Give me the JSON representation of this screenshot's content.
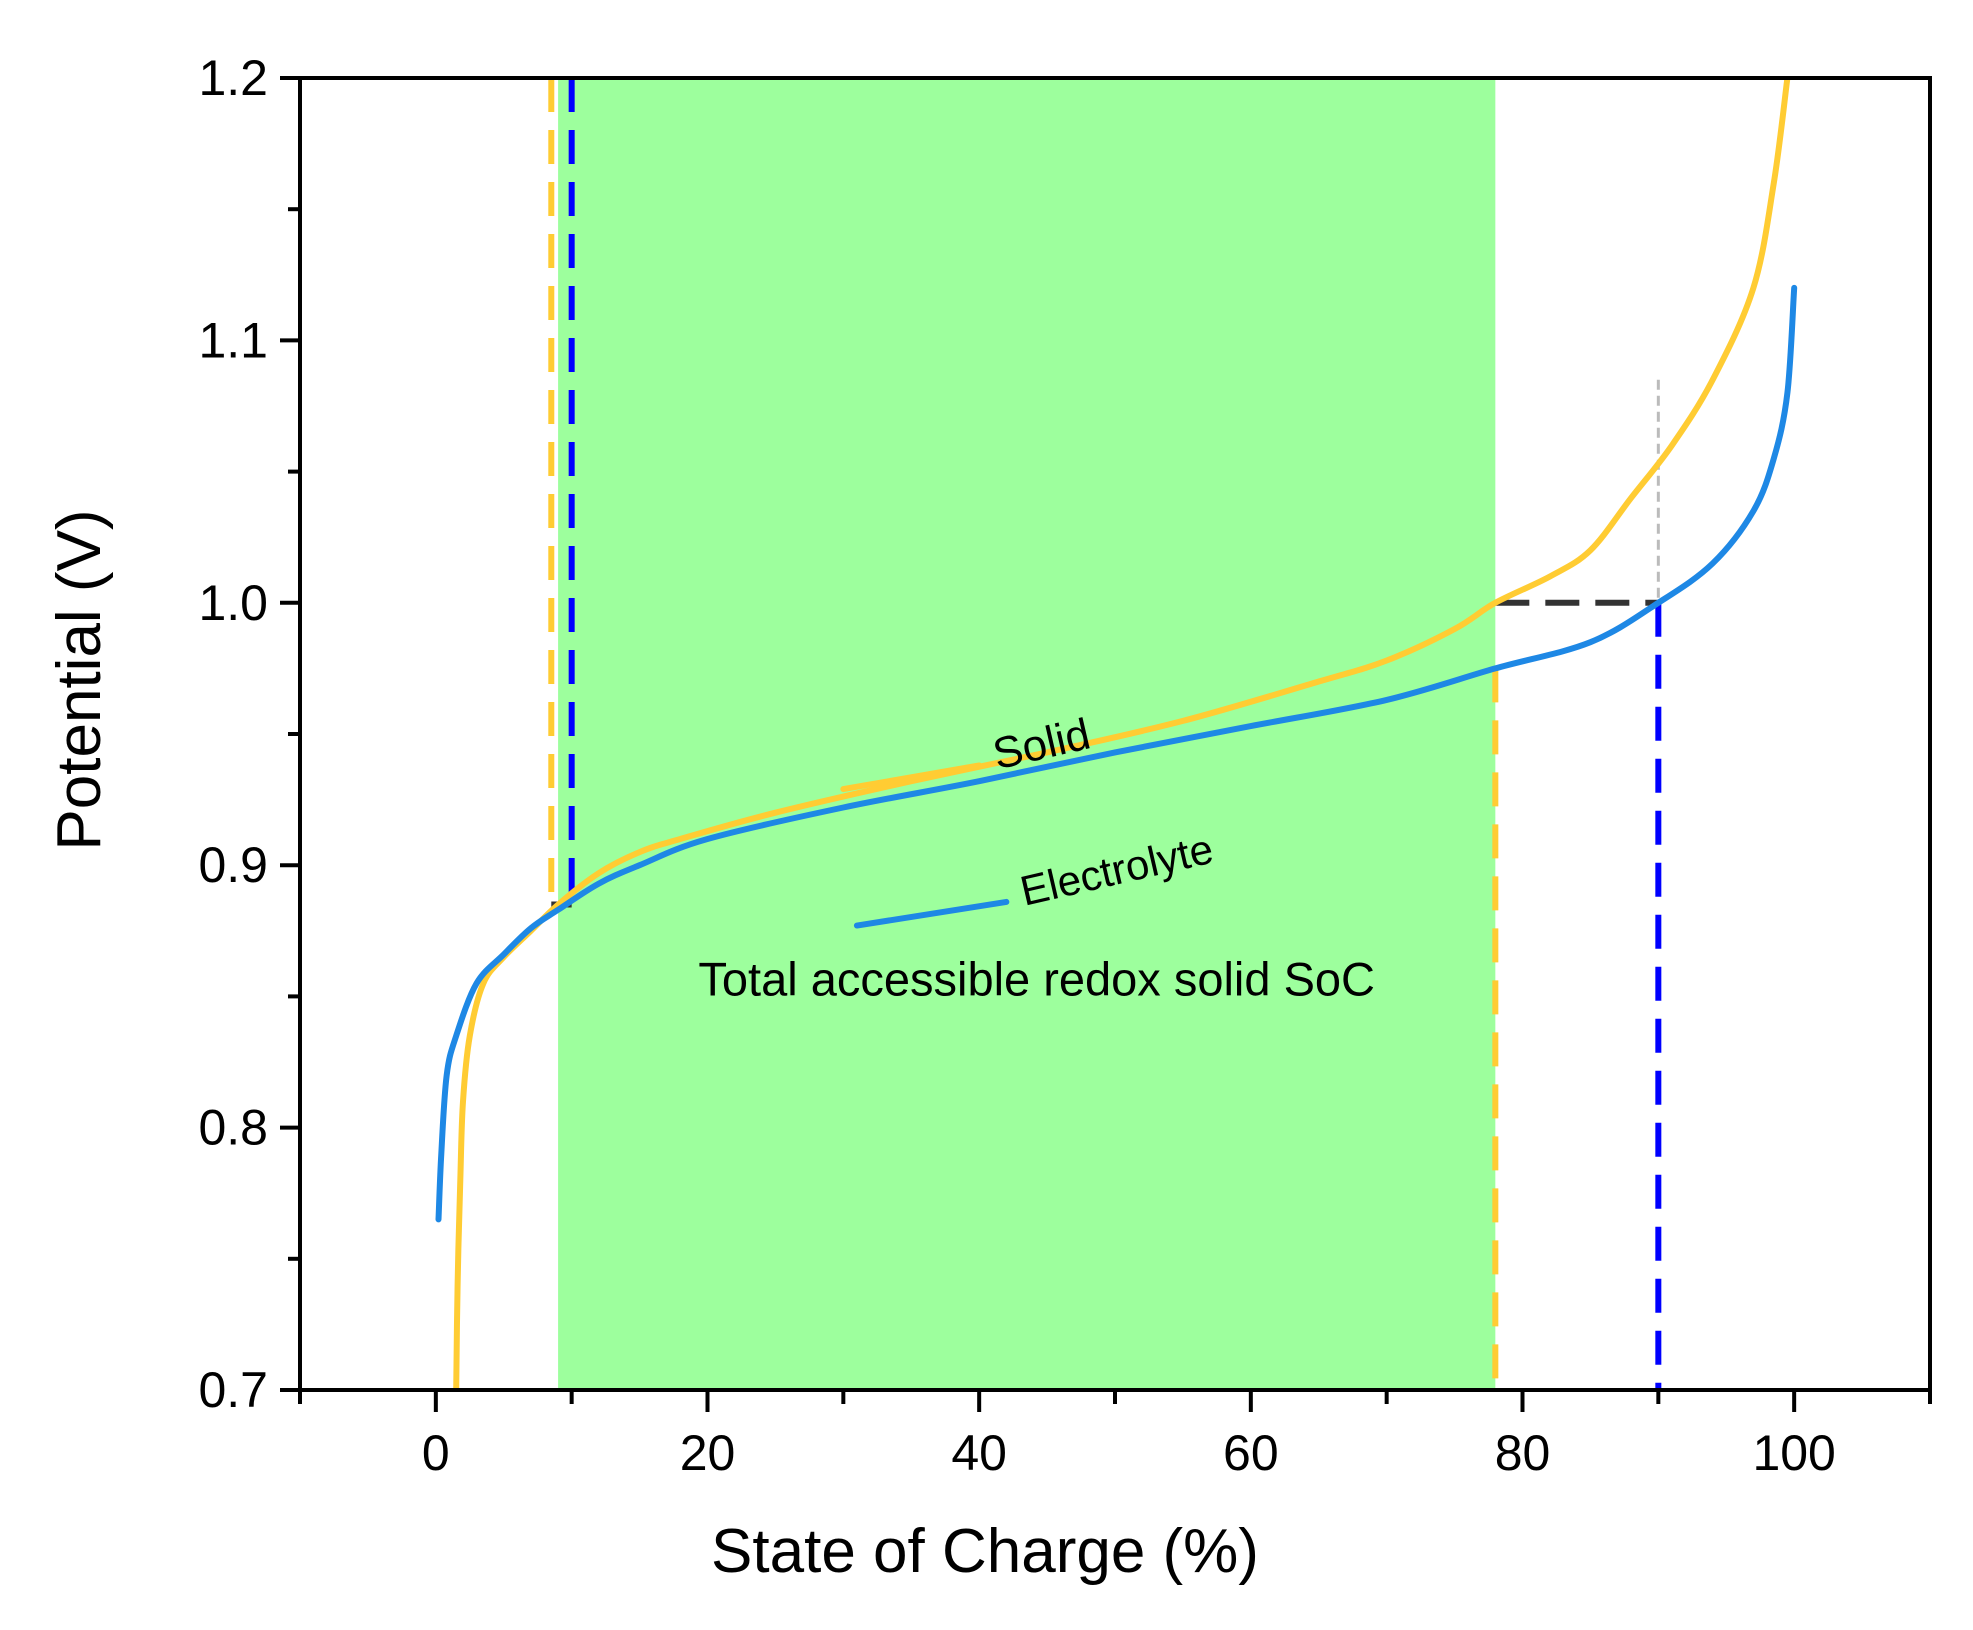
{
  "chart_data": {
    "type": "line",
    "xlabel": "State of Charge (%)",
    "ylabel": "Potential (V)",
    "xlim": [
      -10,
      110
    ],
    "ylim": [
      0.7,
      1.2
    ],
    "x_ticks": [
      0,
      20,
      40,
      60,
      80,
      100
    ],
    "x_tick_labels": [
      "0",
      "20",
      "40",
      "60",
      "80",
      "100"
    ],
    "y_ticks": [
      0.7,
      0.8,
      0.9,
      1.0,
      1.1,
      1.2
    ],
    "y_tick_labels": [
      "0.7",
      "0.8",
      "0.9",
      "1.0",
      "1.1",
      "1.2"
    ],
    "colors": {
      "solid": "#FFCC33",
      "electrolyte": "#1E88E5",
      "region": "#9DFF9D",
      "blue_marker": "#0000FF",
      "dark_marker": "#333333",
      "grey_guide": "#BBBBBB"
    },
    "series": [
      {
        "name": "Solid",
        "color": "#FFCC33",
        "points": [
          [
            1.5,
            0.7
          ],
          [
            1.6,
            0.74
          ],
          [
            1.8,
            0.78
          ],
          [
            2.0,
            0.81
          ],
          [
            2.5,
            0.835
          ],
          [
            3.5,
            0.855
          ],
          [
            5.0,
            0.865
          ],
          [
            7.0,
            0.875
          ],
          [
            9.0,
            0.885
          ],
          [
            12.0,
            0.897
          ],
          [
            15.0,
            0.905
          ],
          [
            18.0,
            0.91
          ],
          [
            25.0,
            0.92
          ],
          [
            35.0,
            0.932
          ],
          [
            45.0,
            0.943
          ],
          [
            55.0,
            0.955
          ],
          [
            65.0,
            0.97
          ],
          [
            70.0,
            0.978
          ],
          [
            75.0,
            0.99
          ],
          [
            78.0,
            1.0
          ],
          [
            82.0,
            1.01
          ],
          [
            85.0,
            1.02
          ],
          [
            88.0,
            1.04
          ],
          [
            91.0,
            1.06
          ],
          [
            94.0,
            1.085
          ],
          [
            97.0,
            1.12
          ],
          [
            98.5,
            1.16
          ],
          [
            99.5,
            1.2
          ]
        ]
      },
      {
        "name": "Electrolyte",
        "color": "#1E88E5",
        "points": [
          [
            0.2,
            0.765
          ],
          [
            0.4,
            0.79
          ],
          [
            0.8,
            0.82
          ],
          [
            1.5,
            0.835
          ],
          [
            3.0,
            0.855
          ],
          [
            5.0,
            0.866
          ],
          [
            7.0,
            0.876
          ],
          [
            9.0,
            0.883
          ],
          [
            12.0,
            0.893
          ],
          [
            15.0,
            0.9
          ],
          [
            20.0,
            0.91
          ],
          [
            30.0,
            0.922
          ],
          [
            40.0,
            0.932
          ],
          [
            50.0,
            0.943
          ],
          [
            60.0,
            0.953
          ],
          [
            70.0,
            0.963
          ],
          [
            78.0,
            0.975
          ],
          [
            85.0,
            0.985
          ],
          [
            90.0,
            1.0
          ],
          [
            94.0,
            1.015
          ],
          [
            97.0,
            1.035
          ],
          [
            98.5,
            1.055
          ],
          [
            99.5,
            1.08
          ],
          [
            100.0,
            1.12
          ]
        ]
      }
    ],
    "shaded_region": {
      "x": [
        9,
        78
      ],
      "label": "Total accessible redox solid SoC"
    },
    "reference_lines": {
      "solid_start_x": 8.5,
      "solid_end_x": 78,
      "electrolyte_start_x": 10,
      "electrolyte_end_x": 90,
      "horizontal_y": 1.0,
      "horizontal_x": [
        78,
        90
      ],
      "low_marker_y": 0.885,
      "low_marker_x": [
        8.5,
        10
      ],
      "grey_guide_x": 90,
      "grey_guide_y": [
        1.0,
        1.085
      ]
    },
    "legend": [
      {
        "label": "Solid",
        "color": "#FFCC33",
        "line_x": [
          30,
          40
        ],
        "line_y": [
          0.929,
          0.938
        ]
      },
      {
        "label": "Electrolyte",
        "color": "#1E88E5",
        "line_x": [
          31,
          42
        ],
        "line_y": [
          0.877,
          0.886
        ]
      }
    ]
  }
}
